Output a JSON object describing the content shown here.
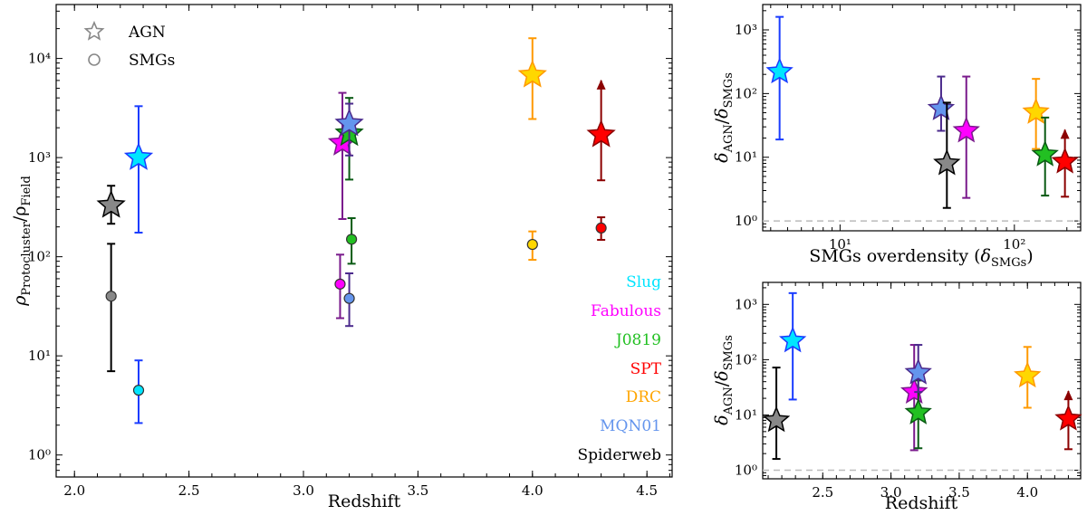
{
  "legend": {
    "agn_label": "AGN",
    "smg_label": "SMGs"
  },
  "names_order": [
    "Slug",
    "Fabulous",
    "J0819",
    "SPT",
    "DRC",
    "MQN01",
    "Spiderweb"
  ],
  "chart_data": [
    {
      "id": "main",
      "type": "scatter",
      "xlabel": "Redshift",
      "ylabel": "ρ_Protocluster/ρ_Field",
      "ylabel_main": "ρ",
      "ylabel_sub1": "Protocluster",
      "ylabel_slash": "/ρ",
      "ylabel_sub2": "Field",
      "xscale": "linear",
      "yscale": "log",
      "xlim": [
        1.92,
        4.61
      ],
      "ylim": [
        0.6,
        35000
      ],
      "xticks": [
        2.0,
        2.5,
        3.0,
        3.5,
        4.0,
        4.5
      ],
      "xtick_labels": [
        "2.0",
        "2.5",
        "3.0",
        "3.5",
        "4.0",
        "4.5"
      ],
      "yticks": [
        1,
        10,
        100,
        1000,
        10000
      ],
      "ytick_labels": [
        "10⁰",
        "10¹",
        "10²",
        "10³",
        "10⁴"
      ],
      "series": [
        {
          "name": "AGN",
          "marker": "star",
          "points": [
            {
              "label": "Spiderweb",
              "x": 2.16,
              "y": 330,
              "ylo": 215,
              "yhi": 520
            },
            {
              "label": "Slug",
              "x": 2.28,
              "y": 1000,
              "ylo": 175,
              "yhi": 3300
            },
            {
              "label": "Fabulous",
              "x": 3.17,
              "y": 1400,
              "ylo": 240,
              "yhi": 4500
            },
            {
              "label": "J0819",
              "x": 3.2,
              "y": 1750,
              "ylo": 600,
              "yhi": 4000
            },
            {
              "label": "MQN01",
              "x": 3.2,
              "y": 2200,
              "ylo": 1050,
              "yhi": 3500
            },
            {
              "label": "DRC",
              "x": 4.0,
              "y": 6800,
              "ylo": 2450,
              "yhi": 16000
            },
            {
              "label": "SPT",
              "x": 4.3,
              "y": 1700,
              "ylo": 590,
              "yhi": 6000,
              "lower_limit": true
            }
          ]
        },
        {
          "name": "SMGs",
          "marker": "circle",
          "points": [
            {
              "label": "Spiderweb",
              "x": 2.16,
              "y": 40,
              "ylo": 7,
              "yhi": 135
            },
            {
              "label": "Slug",
              "x": 2.28,
              "y": 4.5,
              "ylo": 2.1,
              "yhi": 9
            },
            {
              "label": "Fabulous",
              "x": 3.16,
              "y": 53,
              "ylo": 24,
              "yhi": 105
            },
            {
              "label": "J0819",
              "x": 3.21,
              "y": 150,
              "ylo": 85,
              "yhi": 245
            },
            {
              "label": "MQN01",
              "x": 3.2,
              "y": 38,
              "ylo": 20,
              "yhi": 68
            },
            {
              "label": "DRC",
              "x": 4.0,
              "y": 133,
              "ylo": 93,
              "yhi": 180
            },
            {
              "label": "SPT",
              "x": 4.3,
              "y": 195,
              "ylo": 148,
              "yhi": 250
            }
          ]
        }
      ]
    },
    {
      "id": "top-right",
      "type": "scatter",
      "xlabel": "SMGs overdensity (δ_SMGs)",
      "xlabel_text": "SMGs overdensity (",
      "xlabel_delta": "δ",
      "xlabel_sub": "SMGs",
      "xlabel_close": ")",
      "ylabel": "δ_AGN/δ_SMGs",
      "ylabel_sub1": "AGN",
      "ylabel_sub2": "SMGs",
      "xscale": "log",
      "yscale": "log",
      "xlim": [
        3.6,
        240
      ],
      "ylim": [
        0.7,
        2500
      ],
      "xticks": [
        10,
        100
      ],
      "xtick_labels": [
        "10¹",
        "10²"
      ],
      "yticks": [
        1,
        10,
        100,
        1000
      ],
      "ytick_labels": [
        "10⁰",
        "10¹",
        "10²",
        "10³"
      ],
      "reference_line": 1,
      "series": [
        {
          "name": "AGN",
          "marker": "star",
          "points": [
            {
              "label": "Slug",
              "x": 4.5,
              "y": 220,
              "ylo": 19,
              "yhi": 1600
            },
            {
              "label": "MQN01",
              "x": 38,
              "y": 58,
              "ylo": 26,
              "yhi": 185
            },
            {
              "label": "Spiderweb",
              "x": 41,
              "y": 8,
              "ylo": 1.6,
              "yhi": 72
            },
            {
              "label": "Fabulous",
              "x": 53,
              "y": 26,
              "ylo": 2.3,
              "yhi": 185
            },
            {
              "label": "DRC",
              "x": 133,
              "y": 51,
              "ylo": 13.5,
              "yhi": 170
            },
            {
              "label": "J0819",
              "x": 150,
              "y": 11,
              "ylo": 2.5,
              "yhi": 42
            },
            {
              "label": "SPT",
              "x": 195,
              "y": 8.5,
              "ylo": 2.4,
              "yhi": 27,
              "lower_limit": true
            }
          ]
        }
      ]
    },
    {
      "id": "bottom-right",
      "type": "scatter",
      "xlabel": "Redshift",
      "ylabel": "δ_AGN/δ_SMGs",
      "ylabel_sub1": "AGN",
      "ylabel_sub2": "SMGs",
      "xscale": "linear",
      "yscale": "log",
      "xlim": [
        2.06,
        4.39
      ],
      "ylim": [
        0.7,
        2500
      ],
      "xticks": [
        2.5,
        3.0,
        3.5,
        4.0
      ],
      "xtick_labels": [
        "2.5",
        "3.0",
        "3.5",
        "4.0"
      ],
      "yticks": [
        1,
        10,
        100,
        1000
      ],
      "ytick_labels": [
        "10⁰",
        "10¹",
        "10²",
        "10³"
      ],
      "reference_line": 1,
      "series": [
        {
          "name": "AGN",
          "marker": "star",
          "points": [
            {
              "label": "Spiderweb",
              "x": 2.16,
              "y": 8,
              "ylo": 1.6,
              "yhi": 72
            },
            {
              "label": "Slug",
              "x": 2.28,
              "y": 220,
              "ylo": 19,
              "yhi": 1600
            },
            {
              "label": "Fabulous",
              "x": 3.17,
              "y": 26,
              "ylo": 2.3,
              "yhi": 185
            },
            {
              "label": "J0819",
              "x": 3.2,
              "y": 11,
              "ylo": 2.5,
              "yhi": 42
            },
            {
              "label": "MQN01",
              "x": 3.2,
              "y": 58,
              "ylo": 26,
              "yhi": 185
            },
            {
              "label": "DRC",
              "x": 4.0,
              "y": 51,
              "ylo": 13.5,
              "yhi": 170
            },
            {
              "label": "SPT",
              "x": 4.3,
              "y": 8.5,
              "ylo": 2.4,
              "yhi": 27,
              "lower_limit": true
            }
          ]
        }
      ]
    }
  ],
  "colors": {
    "Slug": {
      "fill": "#00e5ff",
      "edge": "#1a3cff",
      "err": "#1a3cff",
      "text": "#00e5ff"
    },
    "Fabulous": {
      "fill": "#ff00ff",
      "edge": "#7a1a8c",
      "err": "#7a1a8c",
      "text": "#ff00ff"
    },
    "J0819": {
      "fill": "#22c022",
      "edge": "#0a5a14",
      "err": "#0a5a14",
      "text": "#22c022"
    },
    "SPT": {
      "fill": "#ff0000",
      "edge": "#8b0000",
      "err": "#8b0000",
      "text": "#ff0000"
    },
    "DRC": {
      "fill": "#ffd700",
      "edge": "#ff9900",
      "err": "#ff9900",
      "text": "#ffa500"
    },
    "MQN01": {
      "fill": "#6495ed",
      "edge": "#4b2a8c",
      "err": "#4b2a8c",
      "text": "#6495ed"
    },
    "Spiderweb": {
      "fill": "#888888",
      "edge": "#000000",
      "err": "#000000",
      "text": "#000000"
    }
  },
  "legend_color": "#888888",
  "ref_line_color": "#bbbbbb"
}
